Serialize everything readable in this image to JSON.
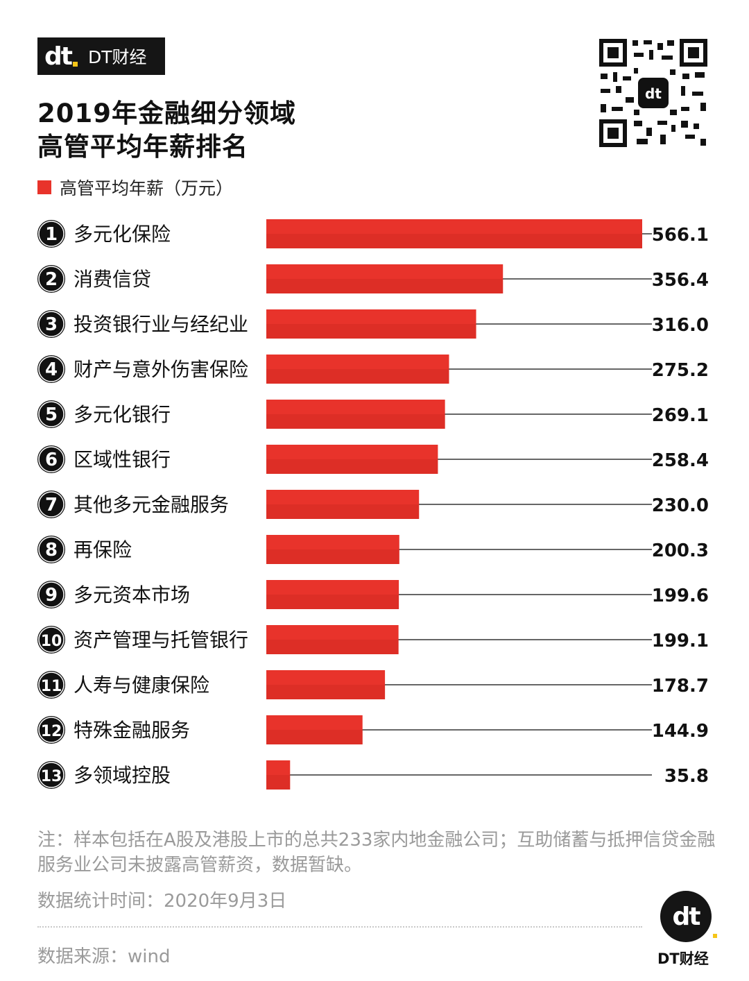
{
  "brand": {
    "logo_text": "dt",
    "name": "DT财经"
  },
  "title_line1": "2019年金融细分领域",
  "title_line2": "高管平均年薪排名",
  "legend_label": "高管平均年薪（万元）",
  "colors": {
    "bar": "#e8332b",
    "bar_shadow": "#c9241e",
    "badge": "#111111"
  },
  "chart_data": {
    "type": "bar",
    "orientation": "horizontal",
    "series": [
      {
        "name": "高管平均年薪（万元）",
        "values": [
          566.1,
          356.4,
          316.0,
          275.2,
          269.1,
          258.4,
          230.0,
          200.3,
          199.6,
          199.1,
          178.7,
          144.9,
          35.8
        ]
      }
    ],
    "ranks": [
      "1",
      "2",
      "3",
      "4",
      "5",
      "6",
      "7",
      "8",
      "9",
      "10",
      "11",
      "12",
      "13"
    ],
    "categories": [
      "多元化保险",
      "消费信贷",
      "投资银行业与经纪业",
      "财产与意外伤害保险",
      "多元化银行",
      "区域性银行",
      "其他多元金融服务",
      "再保险",
      "多元资本市场",
      "资产管理与托管银行",
      "人寿与健康保险",
      "特殊金融服务",
      "多领域控股"
    ],
    "value_labels": [
      "566.1",
      "356.4",
      "316.0",
      "275.2",
      "269.1",
      "258.4",
      "230.0",
      "200.3",
      "199.6",
      "199.1",
      "178.7",
      "144.9",
      "35.8"
    ],
    "xlim": [
      0,
      566.1
    ],
    "grid": false
  },
  "footnote": "注：样本包括在A股及港股上市的总共233家内地金融公司；互助储蓄与抵押信贷金融服务业公司未披露高管薪资，数据暂缺。",
  "stat_time": "数据统计时间：2020年9月3日",
  "source": "数据来源：wind",
  "corner_logo_text": "dt",
  "corner_name": "DT财经"
}
